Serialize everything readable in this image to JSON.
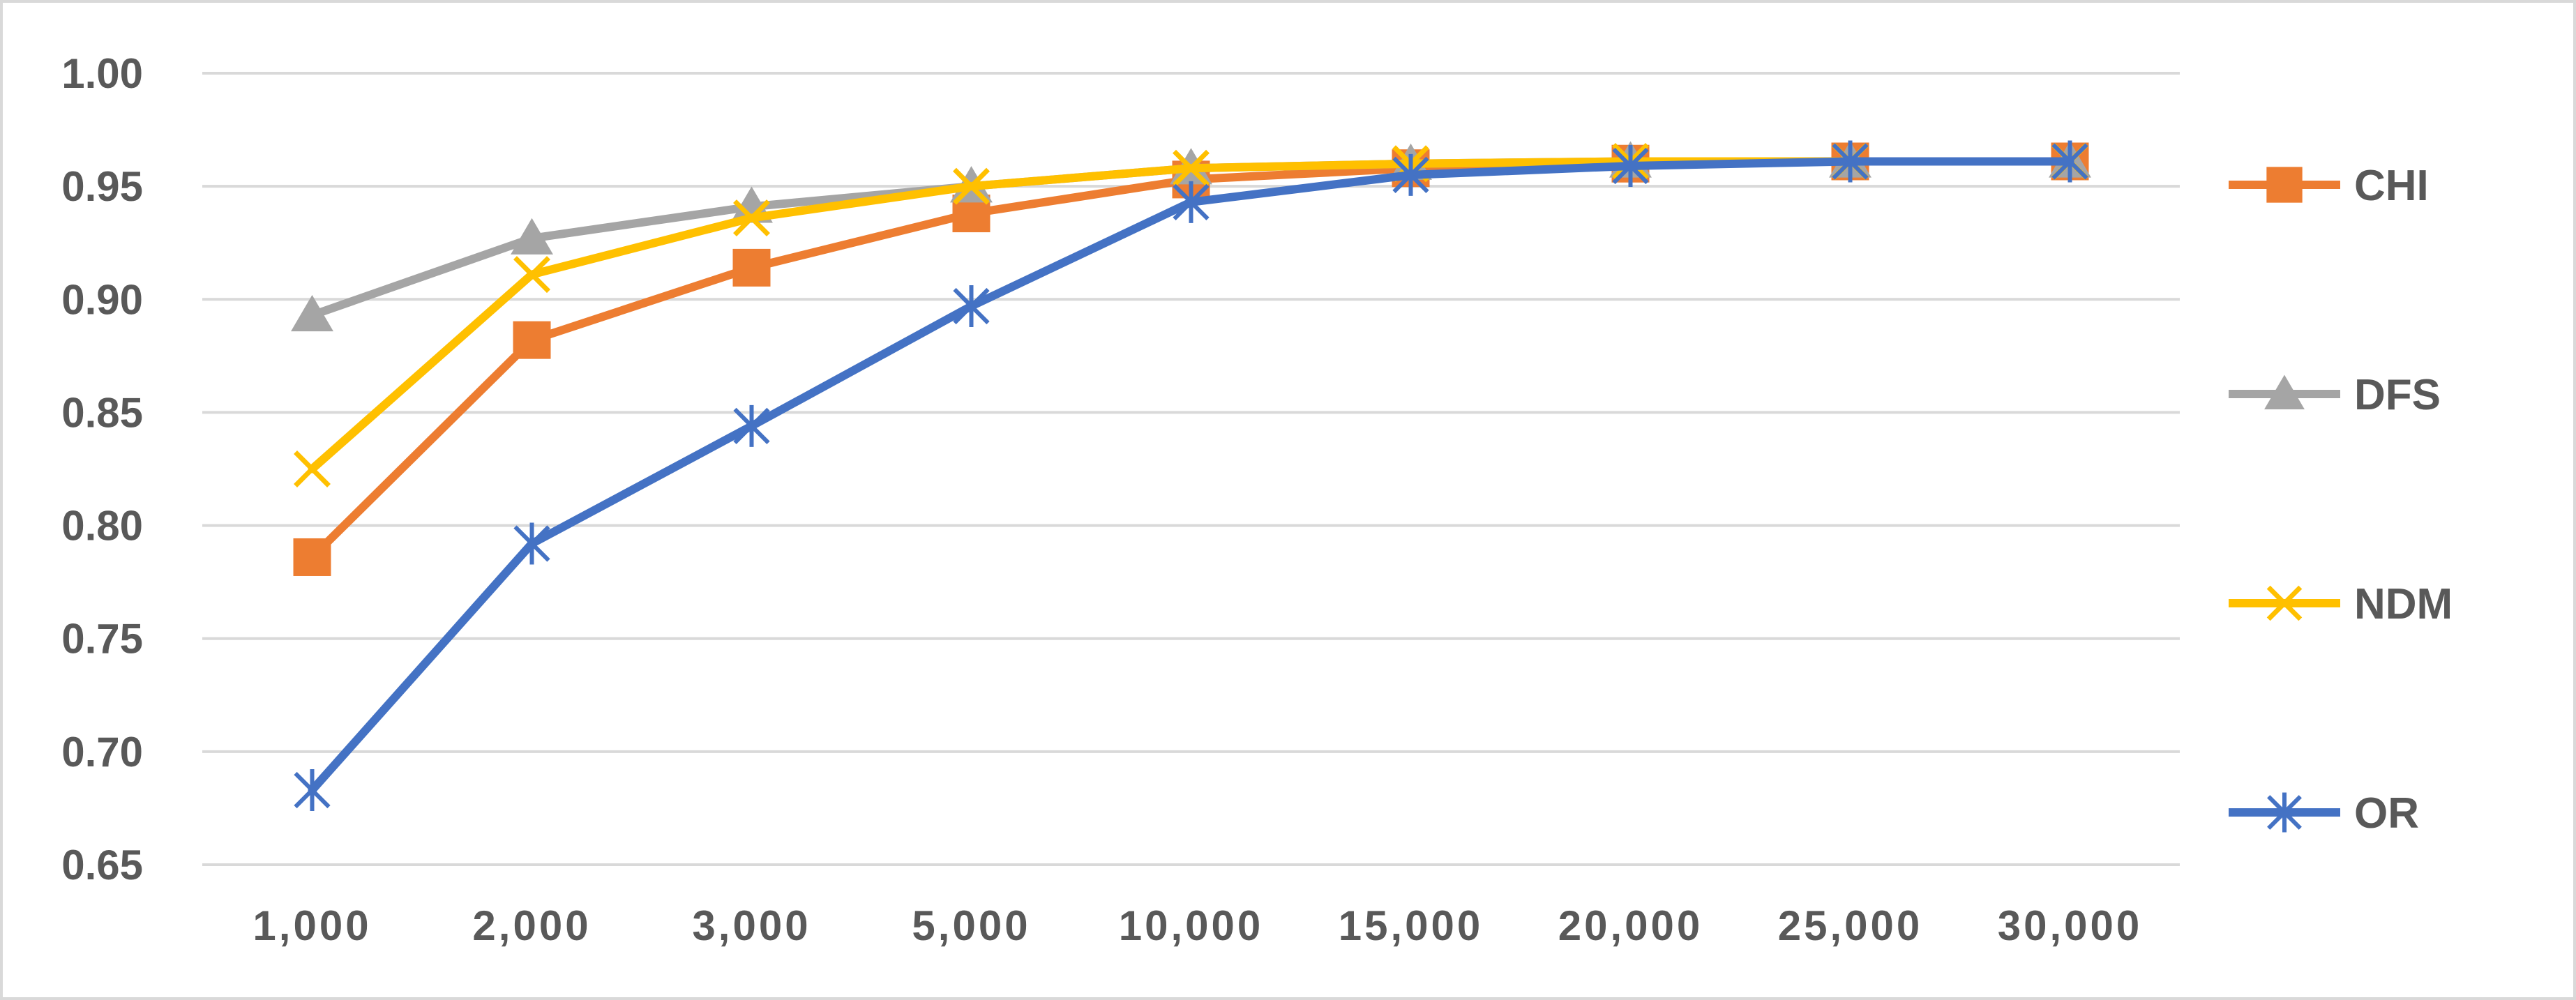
{
  "chart_data": {
    "type": "line",
    "categories": [
      "1,000",
      "2,000",
      "3,000",
      "5,000",
      "10,000",
      "15,000",
      "20,000",
      "25,000",
      "30,000"
    ],
    "y_ticks": [
      "0.65",
      "0.70",
      "0.75",
      "0.80",
      "0.85",
      "0.90",
      "0.95",
      "1.00"
    ],
    "ylim": [
      0.65,
      1.0
    ],
    "grid": "horizontal",
    "legend_position": "right",
    "series": [
      {
        "name": "CHI",
        "color": "#ed7d31",
        "marker": "square",
        "values": [
          0.786,
          0.882,
          0.914,
          0.938,
          0.953,
          0.958,
          0.96,
          0.961,
          0.961
        ]
      },
      {
        "name": "DFS",
        "color": "#a5a5a5",
        "marker": "triangle",
        "values": [
          0.893,
          0.927,
          0.941,
          0.95,
          0.958,
          0.96,
          0.961,
          0.961,
          0.961
        ]
      },
      {
        "name": "NDM",
        "color": "#ffc000",
        "marker": "x",
        "values": [
          0.825,
          0.911,
          0.936,
          0.95,
          0.958,
          0.96,
          0.961,
          0.961,
          0.961
        ]
      },
      {
        "name": "OR",
        "color": "#4472c4",
        "marker": "star",
        "values": [
          0.683,
          0.792,
          0.844,
          0.897,
          0.943,
          0.955,
          0.959,
          0.961,
          0.961
        ]
      }
    ]
  }
}
